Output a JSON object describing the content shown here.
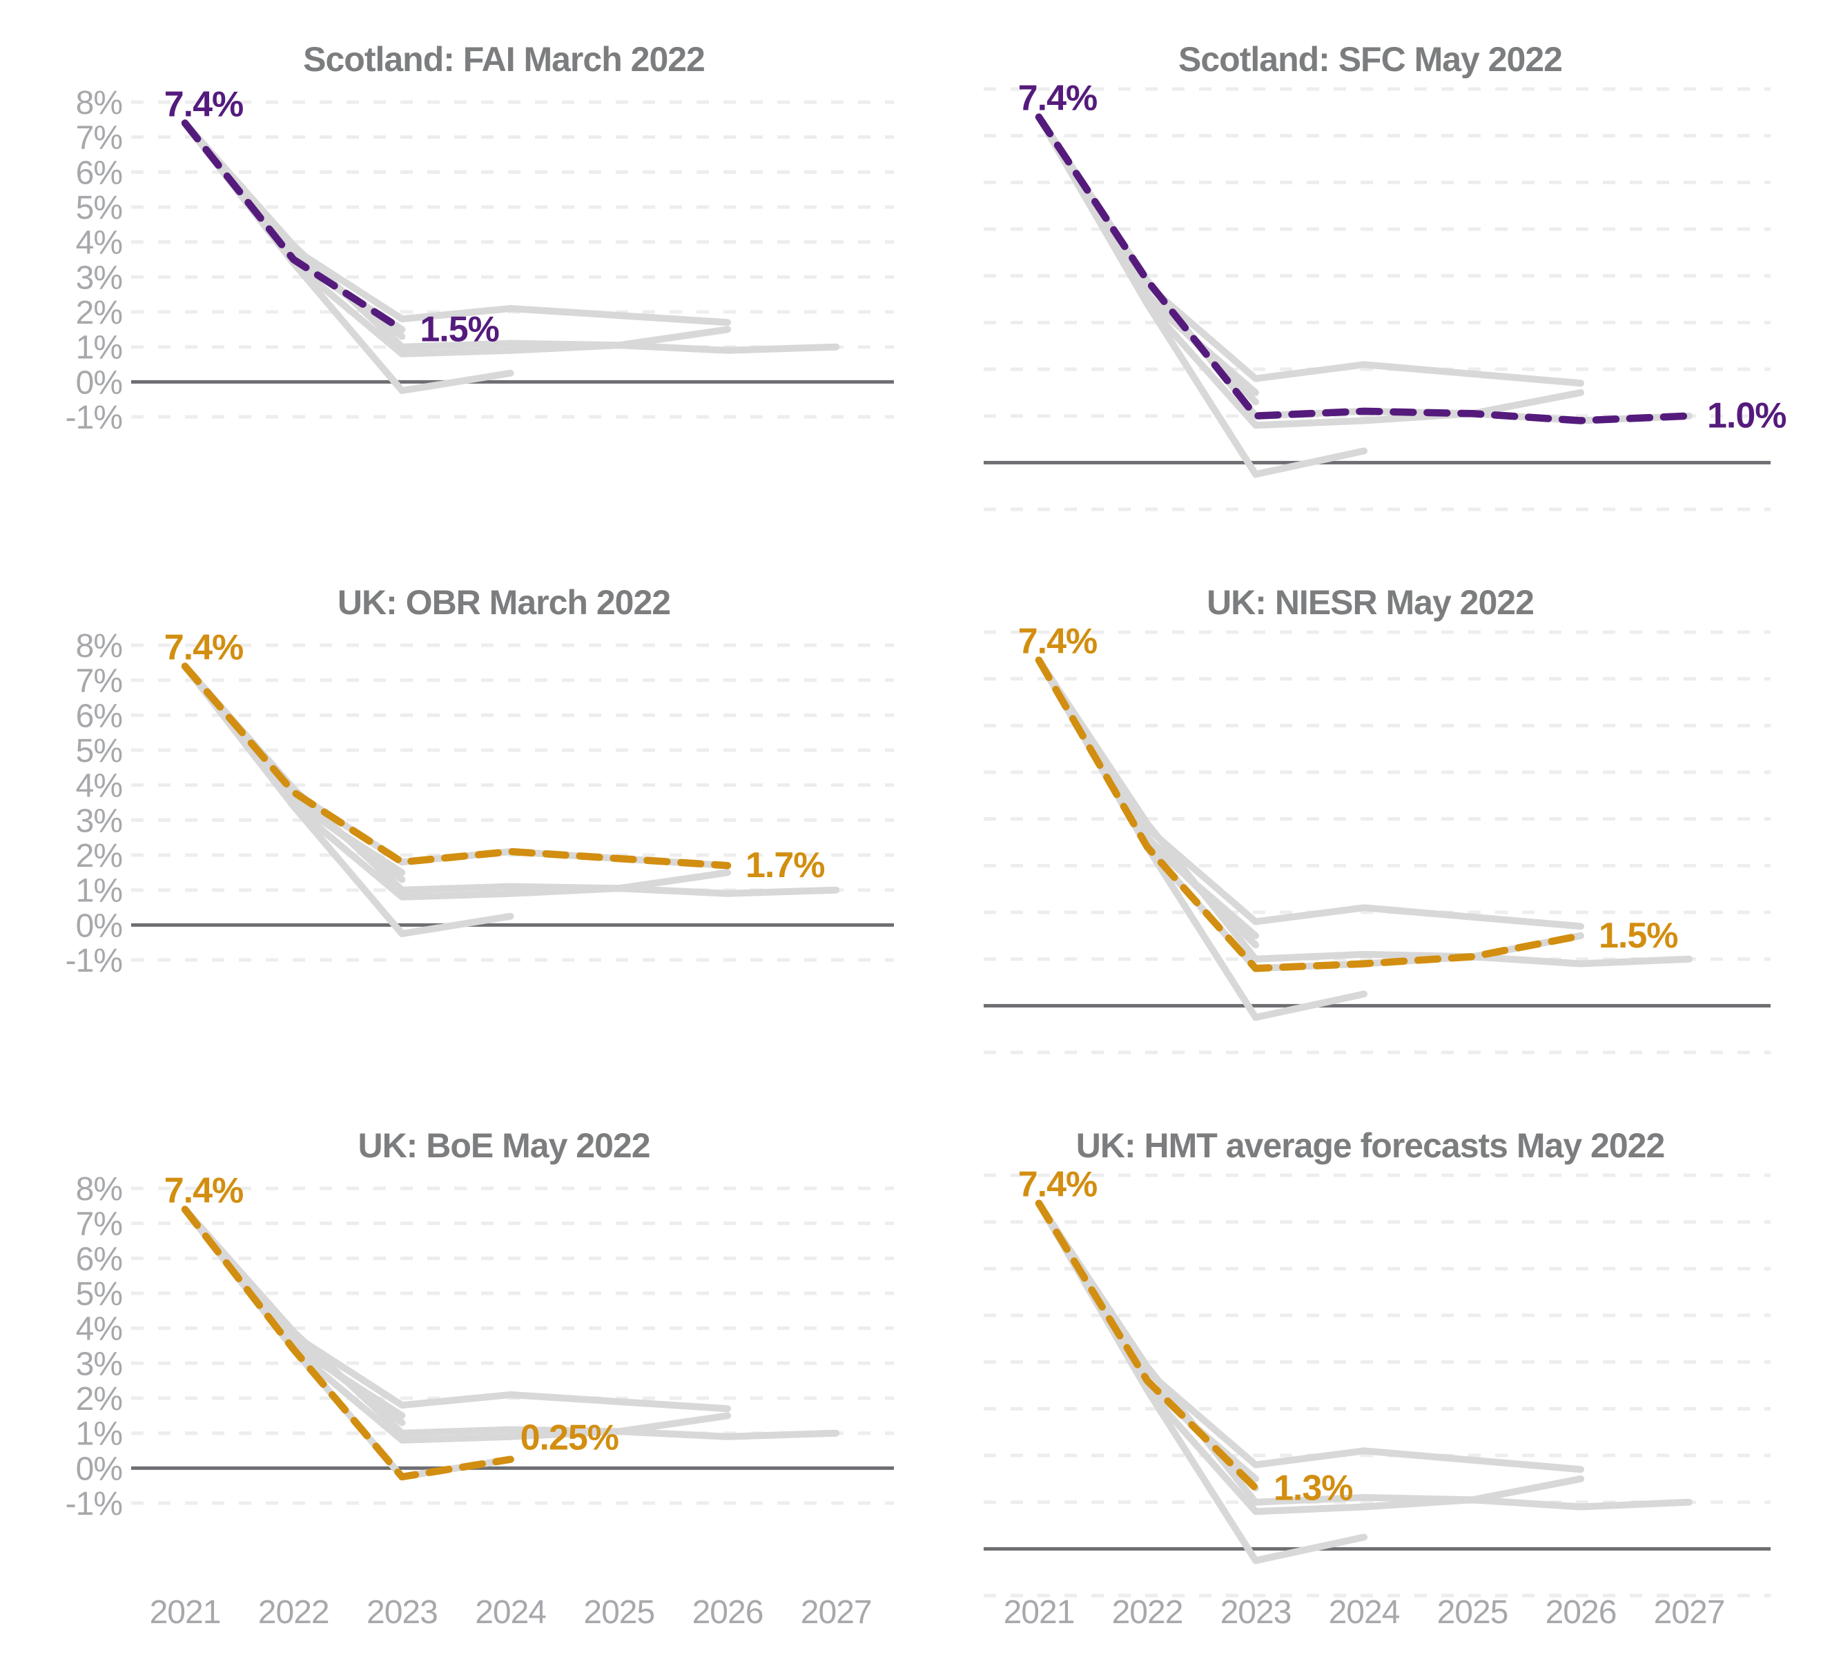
{
  "colors": {
    "background": "#ffffff",
    "scotland_accent": "#541b7c",
    "uk_accent": "#d28e10",
    "context_line": "#d8d8d8",
    "grid_line": "#ededed",
    "zero_line": "#6d6e71",
    "title_text": "#7b7d7f",
    "axis_text": "#a6a8ab"
  },
  "chart_data": {
    "type": "line",
    "unit": "percent GDP growth",
    "x": [
      2021,
      2022,
      2023,
      2024,
      2025,
      2026,
      2027
    ],
    "x_tick_labels": [
      "2021",
      "2022",
      "2023",
      "2024",
      "2025",
      "2026",
      "2027"
    ],
    "y_tick_labels": [
      "8%",
      "7%",
      "6%",
      "5%",
      "4%",
      "3%",
      "2%",
      "1%",
      "0%",
      "-1%"
    ],
    "ylim": [
      -1,
      8
    ],
    "y_tick_step": 1,
    "grid": "horizontal-dashed",
    "zero_axis": "solid",
    "legend_position": "none",
    "series": [
      {
        "name": "FAI",
        "values": [
          7.4,
          3.5,
          1.5,
          null,
          null,
          null,
          null
        ]
      },
      {
        "name": "SFC",
        "values": [
          7.4,
          3.9,
          1.0,
          1.1,
          1.05,
          0.9,
          1.0
        ]
      },
      {
        "name": "OBR",
        "values": [
          7.4,
          3.8,
          1.8,
          2.1,
          1.9,
          1.7,
          null
        ]
      },
      {
        "name": "NIESR",
        "values": [
          7.4,
          3.4,
          0.8,
          0.9,
          1.05,
          1.5,
          null
        ]
      },
      {
        "name": "BoE",
        "values": [
          7.4,
          3.4,
          -0.25,
          0.25,
          null,
          null,
          null
        ]
      },
      {
        "name": "HMT",
        "values": [
          7.4,
          3.6,
          1.3,
          null,
          null,
          null,
          null
        ]
      }
    ],
    "panels": [
      {
        "title": "Scotland: FAI March 2022",
        "highlight": "FAI",
        "accent": "#541b7c",
        "start_label": "7.4%",
        "end_label": "1.5%",
        "end_label_placement": "right"
      },
      {
        "title": "Scotland: SFC May 2022",
        "highlight": "SFC",
        "accent": "#541b7c",
        "start_label": "7.4%",
        "end_label": "1.0%",
        "end_label_placement": "right"
      },
      {
        "title": "UK: OBR March 2022",
        "highlight": "OBR",
        "accent": "#d28e10",
        "start_label": "7.4%",
        "end_label": "1.7%",
        "end_label_placement": "right"
      },
      {
        "title": "UK: NIESR May 2022",
        "highlight": "NIESR",
        "accent": "#d28e10",
        "start_label": "7.4%",
        "end_label": "1.5%",
        "end_label_placement": "right"
      },
      {
        "title": "UK: BoE May 2022",
        "highlight": "BoE",
        "accent": "#d28e10",
        "start_label": "7.4%",
        "end_label": "0.25%",
        "end_label_placement": "above-right"
      },
      {
        "title": "UK: HMT average forecasts May 2022",
        "highlight": "HMT",
        "accent": "#d28e10",
        "start_label": "7.4%",
        "end_label": "1.3%",
        "end_label_placement": "right"
      }
    ]
  }
}
